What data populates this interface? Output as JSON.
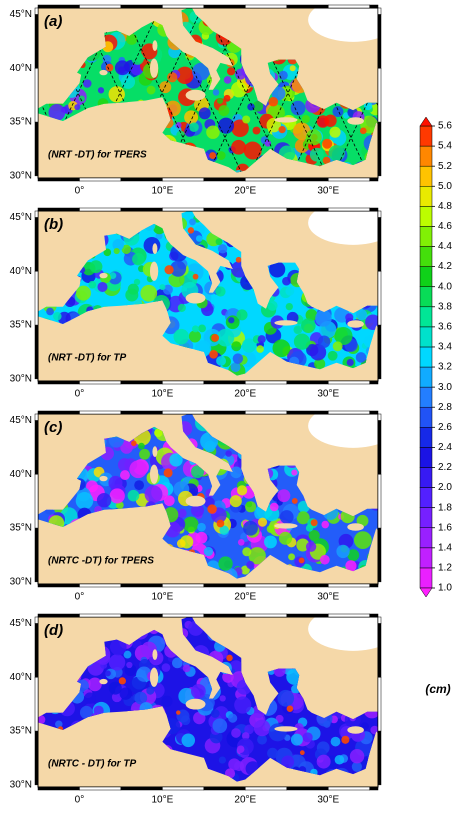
{
  "panels": [
    {
      "label": "(a)",
      "caption": "(NRT -DT) for TPERS"
    },
    {
      "label": "(b)",
      "caption": "(NRT -DT) for TP"
    },
    {
      "label": "(c)",
      "caption": "(NRTC -DT) for TPERS"
    },
    {
      "label": "(d)",
      "caption": "(NRTC - DT) for TP"
    }
  ],
  "lat_ticks": [
    "45°N",
    "40°N",
    "35°N",
    "30°N"
  ],
  "lon_ticks": [
    "0°",
    "10°E",
    "20°E",
    "30°E"
  ],
  "colorbar": {
    "ticks": [
      "1.0",
      "1.2",
      "1.4",
      "1.6",
      "1.8",
      "2.0",
      "2.2",
      "2.4",
      "2.6",
      "2.8",
      "3.0",
      "3.2",
      "3.4",
      "3.6",
      "3.8",
      "4.0",
      "4.2",
      "4.4",
      "4.6",
      "4.8",
      "5.0",
      "5.2",
      "5.4",
      "5.6"
    ],
    "unit": "(cm)"
  }
}
